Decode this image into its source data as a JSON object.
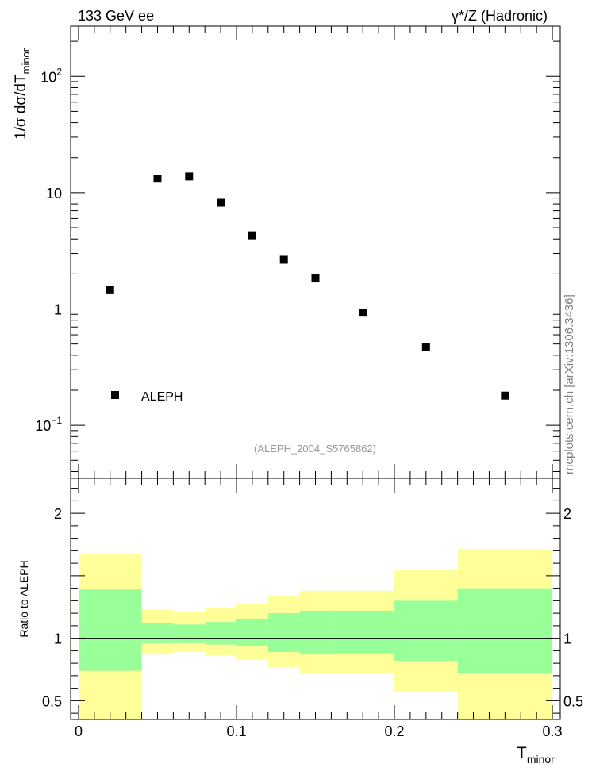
{
  "header": {
    "left_title": "133 GeV ee",
    "right_title": "γ*/Z (Hadronic)"
  },
  "side_label": "mcplots.cern.ch [arXiv:1306.3436]",
  "chart_data": [
    {
      "type": "scatter",
      "panel": "main",
      "y_log": true,
      "xlim": [
        -0.005,
        0.305
      ],
      "ylim": [
        0.035,
        270
      ],
      "ylabel_main": "1/σ  dσ/dT",
      "ylabel_sub": "minor",
      "y_ticks": [
        {
          "value": 0.1,
          "base": "10",
          "exp": "−1"
        },
        {
          "value": 1,
          "base": "1",
          "exp": ""
        },
        {
          "value": 10,
          "base": "10",
          "exp": ""
        },
        {
          "value": 100,
          "base": "10",
          "exp": "2"
        }
      ],
      "legend": {
        "label": "ALEPH",
        "placement": "bottom-left"
      },
      "annotation": "(ALEPH_2004_S5765862)",
      "series": [
        {
          "name": "ALEPH",
          "color": "#000000",
          "points": [
            {
              "x": 0.02,
              "y": 1.45
            },
            {
              "x": 0.05,
              "y": 13.2
            },
            {
              "x": 0.07,
              "y": 13.8
            },
            {
              "x": 0.09,
              "y": 8.2
            },
            {
              "x": 0.11,
              "y": 4.3
            },
            {
              "x": 0.13,
              "y": 2.65
            },
            {
              "x": 0.15,
              "y": 1.83
            },
            {
              "x": 0.18,
              "y": 0.93
            },
            {
              "x": 0.22,
              "y": 0.47
            },
            {
              "x": 0.27,
              "y": 0.18
            }
          ]
        }
      ]
    },
    {
      "type": "area",
      "panel": "ratio",
      "xlim": [
        -0.005,
        0.305
      ],
      "ylim": [
        0.35,
        2.28
      ],
      "ylabel": "Ratio to ALEPH",
      "xlabel_main": "T",
      "xlabel_sub": "minor",
      "x_ticks": [
        {
          "value": 0,
          "label": "0"
        },
        {
          "value": 0.1,
          "label": "0.1"
        },
        {
          "value": 0.2,
          "label": "0.2"
        },
        {
          "value": 0.3,
          "label": "0.3"
        }
      ],
      "y_ticks": [
        {
          "value": 0.5,
          "label": "0.5"
        },
        {
          "value": 1,
          "label": "1"
        },
        {
          "value": 2,
          "label": "2"
        }
      ],
      "reference_line": 1,
      "colors": {
        "outer_band": "#ffff99",
        "inner_band": "#99ff99"
      },
      "bins": [
        {
          "x0": 0.0,
          "x1": 0.04,
          "outer": [
            0.35,
            1.67
          ],
          "inner": [
            0.74,
            1.39
          ]
        },
        {
          "x0": 0.04,
          "x1": 0.06,
          "outer": [
            0.87,
            1.23
          ],
          "inner": [
            0.96,
            1.12
          ]
        },
        {
          "x0": 0.06,
          "x1": 0.08,
          "outer": [
            0.89,
            1.21
          ],
          "inner": [
            0.96,
            1.11
          ]
        },
        {
          "x0": 0.08,
          "x1": 0.1,
          "outer": [
            0.86,
            1.24
          ],
          "inner": [
            0.95,
            1.13
          ]
        },
        {
          "x0": 0.1,
          "x1": 0.12,
          "outer": [
            0.83,
            1.28
          ],
          "inner": [
            0.94,
            1.15
          ]
        },
        {
          "x0": 0.12,
          "x1": 0.14,
          "outer": [
            0.77,
            1.34
          ],
          "inner": [
            0.89,
            1.2
          ]
        },
        {
          "x0": 0.14,
          "x1": 0.16,
          "outer": [
            0.72,
            1.38
          ],
          "inner": [
            0.87,
            1.22
          ]
        },
        {
          "x0": 0.16,
          "x1": 0.2,
          "outer": [
            0.72,
            1.38
          ],
          "inner": [
            0.88,
            1.22
          ]
        },
        {
          "x0": 0.2,
          "x1": 0.24,
          "outer": [
            0.57,
            1.55
          ],
          "inner": [
            0.82,
            1.3
          ]
        },
        {
          "x0": 0.24,
          "x1": 0.3,
          "outer": [
            0.35,
            1.71
          ],
          "inner": [
            0.72,
            1.4
          ]
        }
      ]
    }
  ]
}
